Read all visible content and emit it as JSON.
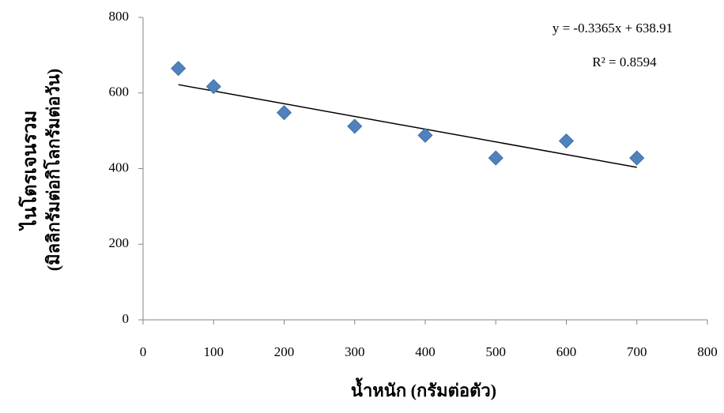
{
  "chart_data": {
    "type": "scatter",
    "xlabel": "น้ำหนัก (กรัมต่อตัว)",
    "ylabel": [
      "ไนโตรเจนรวม",
      "(มิลลิกรัมต่อกิโลกรัมต่อวัน)"
    ],
    "x": [
      50,
      100,
      200,
      300,
      400,
      500,
      600,
      700
    ],
    "values": [
      665,
      617,
      548,
      512,
      488,
      428,
      473,
      428
    ],
    "color": "#4f81bd",
    "trendline": {
      "slope": -0.3365,
      "intercept": 638.91,
      "color": "#000000"
    },
    "annotations": [
      "y = -0.3365x + 638.91",
      "R² = 0.8594"
    ],
    "xlim": [
      0,
      800
    ],
    "xticks": [
      0,
      100,
      200,
      300,
      400,
      500,
      600,
      700,
      800
    ],
    "ylim": [
      0,
      800
    ],
    "yticks": [
      0,
      200,
      400,
      600,
      800
    ]
  }
}
